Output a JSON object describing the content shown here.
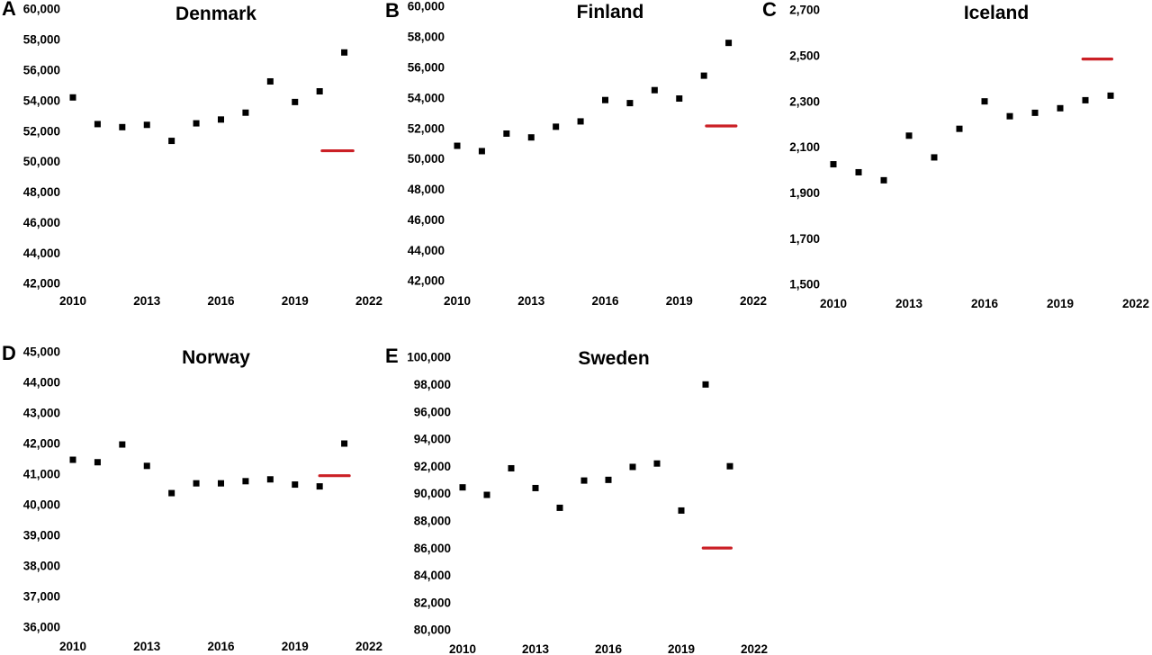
{
  "styles": {
    "point_color": "#000000",
    "reference_line_color": "#cb2026",
    "text_color": "#000000",
    "background": "#ffffff"
  },
  "chart_data": [
    {
      "type": "scatter",
      "panel_label": "A",
      "title": "Denmark",
      "marker": "square",
      "grid": false,
      "xlim": [
        2010,
        2022
      ],
      "ylim": [
        42000,
        60000
      ],
      "ytick_step": 2000,
      "ytick_labels": [
        "60,000",
        "58,000",
        "56,000",
        "54,000",
        "52,000",
        "50,000",
        "48,000",
        "46,000",
        "44,000",
        "42,000"
      ],
      "xticks": [
        2010,
        2013,
        2016,
        2019,
        2022
      ],
      "xtick_labels": [
        "2010",
        "2013",
        "2016",
        "2019",
        "2022"
      ],
      "x": [
        2010,
        2011,
        2012,
        2013,
        2014,
        2015,
        2016,
        2017,
        2018,
        2019,
        2020,
        2021
      ],
      "values": [
        54200,
        52450,
        52250,
        52400,
        51350,
        52500,
        52750,
        53200,
        55250,
        53900,
        54600,
        57150
      ],
      "reference_line": {
        "value": 50700,
        "x_start": 2020.1,
        "x_end": 2021.35
      }
    },
    {
      "type": "scatter",
      "panel_label": "B",
      "title": "Finland",
      "marker": "square",
      "grid": false,
      "xlim": [
        2010,
        2022
      ],
      "ylim": [
        42000,
        60000
      ],
      "ytick_step": 2000,
      "ytick_labels": [
        "60,000",
        "58,000",
        "56,000",
        "54,000",
        "52,000",
        "50,000",
        "48,000",
        "46,000",
        "44,000",
        "42,000"
      ],
      "xticks": [
        2010,
        2013,
        2016,
        2019,
        2022
      ],
      "xtick_labels": [
        "2010",
        "2013",
        "2016",
        "2019",
        "2022"
      ],
      "x": [
        2010,
        2011,
        2012,
        2013,
        2014,
        2015,
        2016,
        2017,
        2018,
        2019,
        2020,
        2021
      ],
      "values": [
        50850,
        50500,
        51650,
        51400,
        52100,
        52450,
        53850,
        53650,
        54500,
        53950,
        55450,
        57600
      ],
      "reference_line": {
        "value": 52150,
        "x_start": 2020.1,
        "x_end": 2021.3
      }
    },
    {
      "type": "scatter",
      "panel_label": "C",
      "title": "Iceland",
      "marker": "square",
      "grid": false,
      "xlim": [
        2010,
        2022
      ],
      "ylim": [
        1500,
        2700
      ],
      "ytick_step": 200,
      "ytick_labels": [
        "2,700",
        "2,500",
        "2,300",
        "2,100",
        "1,900",
        "1,700",
        "1,500"
      ],
      "xticks": [
        2010,
        2013,
        2016,
        2019,
        2022
      ],
      "xtick_labels": [
        "2010",
        "2013",
        "2016",
        "2019",
        "2022"
      ],
      "x": [
        2010,
        2011,
        2012,
        2013,
        2014,
        2015,
        2016,
        2017,
        2018,
        2019,
        2020,
        2021
      ],
      "values": [
        2025,
        1990,
        1955,
        2150,
        2055,
        2180,
        2300,
        2235,
        2250,
        2270,
        2305,
        2325
      ],
      "reference_line": {
        "value": 2485,
        "x_start": 2019.9,
        "x_end": 2021.05
      }
    },
    {
      "type": "scatter",
      "panel_label": "D",
      "title": "Norway",
      "marker": "square",
      "grid": false,
      "xlim": [
        2010,
        2022
      ],
      "ylim": [
        36000,
        45000
      ],
      "ytick_step": 1000,
      "ytick_labels": [
        "45,000",
        "44,000",
        "43,000",
        "42,000",
        "41,000",
        "40,000",
        "39,000",
        "38,000",
        "37,000",
        "36,000"
      ],
      "xticks": [
        2010,
        2013,
        2016,
        2019,
        2022
      ],
      "xtick_labels": [
        "2010",
        "2013",
        "2016",
        "2019",
        "2022"
      ],
      "x": [
        2010,
        2011,
        2012,
        2013,
        2014,
        2015,
        2016,
        2017,
        2018,
        2019,
        2020,
        2021
      ],
      "values": [
        41470,
        41390,
        41970,
        41270,
        40380,
        40700,
        40700,
        40770,
        40830,
        40660,
        40600,
        42000
      ],
      "reference_line": {
        "value": 40950,
        "x_start": 2020.0,
        "x_end": 2021.2
      }
    },
    {
      "type": "scatter",
      "panel_label": "E",
      "title": "Sweden",
      "marker": "square",
      "grid": false,
      "xlim": [
        2010,
        2022
      ],
      "ylim": [
        80000,
        100000
      ],
      "ytick_step": 2000,
      "ytick_labels": [
        "100,000",
        "98,000",
        "96,000",
        "94,000",
        "92,000",
        "90,000",
        "88,000",
        "86,000",
        "84,000",
        "82,000",
        "80,000"
      ],
      "xticks": [
        2010,
        2013,
        2016,
        2019,
        2022
      ],
      "xtick_labels": [
        "2010",
        "2013",
        "2016",
        "2019",
        "2022"
      ],
      "x": [
        2010,
        2011,
        2012,
        2013,
        2014,
        2015,
        2016,
        2017,
        2018,
        2019,
        2020,
        2021
      ],
      "values": [
        90450,
        89900,
        91850,
        90400,
        88950,
        90950,
        91000,
        91950,
        92200,
        88750,
        98000,
        92000
      ],
      "reference_line": {
        "value": 86000,
        "x_start": 2019.9,
        "x_end": 2021.05
      }
    }
  ]
}
